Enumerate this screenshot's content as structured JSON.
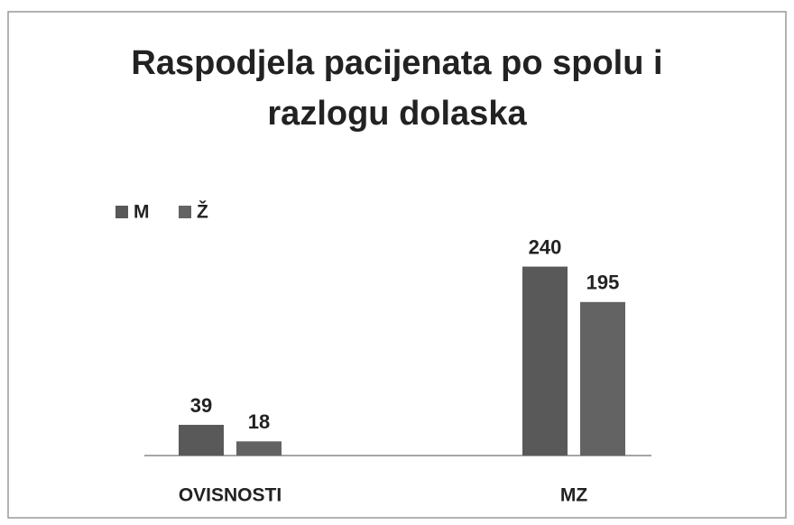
{
  "chart_data": {
    "type": "bar",
    "title": [
      "Raspodjela pacijenata po spolu i",
      "razlogu dolaska"
    ],
    "categories": [
      "OVISNOSTI",
      "MZ"
    ],
    "series": [
      {
        "name": "M",
        "color": "#595959",
        "values": [
          39,
          240
        ]
      },
      {
        "name": "Ž",
        "color": "#636363",
        "values": [
          18,
          195
        ]
      }
    ],
    "ylim": [
      0,
      275
    ]
  }
}
